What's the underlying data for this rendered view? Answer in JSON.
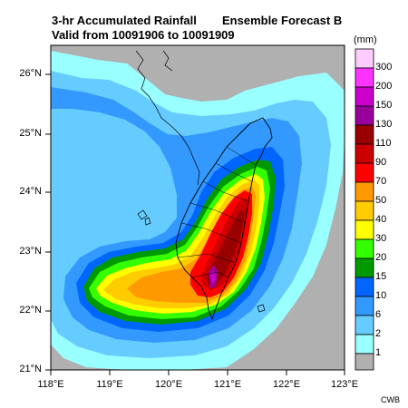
{
  "title": {
    "line1": "3-hr Accumulated Rainfall",
    "line2": "Valid from 10091906 to 10091909",
    "right": "Ensemble Forecast B"
  },
  "axes": {
    "lat_labels": [
      "26°N",
      "25°N",
      "24°N",
      "23°N",
      "22°N",
      "21°N"
    ],
    "lon_labels": [
      "118°E",
      "119°E",
      "120°E",
      "121°E",
      "122°E",
      "123°E"
    ]
  },
  "legend": {
    "unit": "(mm)",
    "levels": [
      "300",
      "200",
      "150",
      "130",
      "110",
      "90",
      "70",
      "50",
      "40",
      "30",
      "20",
      "15",
      "10",
      "6",
      "2",
      "1"
    ],
    "colors": [
      "#ffccff",
      "#ff33ff",
      "#cc00cc",
      "#990099",
      "#990000",
      "#cc0000",
      "#ff0000",
      "#ff9900",
      "#ffcc00",
      "#ffff00",
      "#33ff00",
      "#009900",
      "#0066ff",
      "#3399ff",
      "#66ccff",
      "#99ffff",
      "#b0b0b0"
    ]
  },
  "credit": "CWB"
}
